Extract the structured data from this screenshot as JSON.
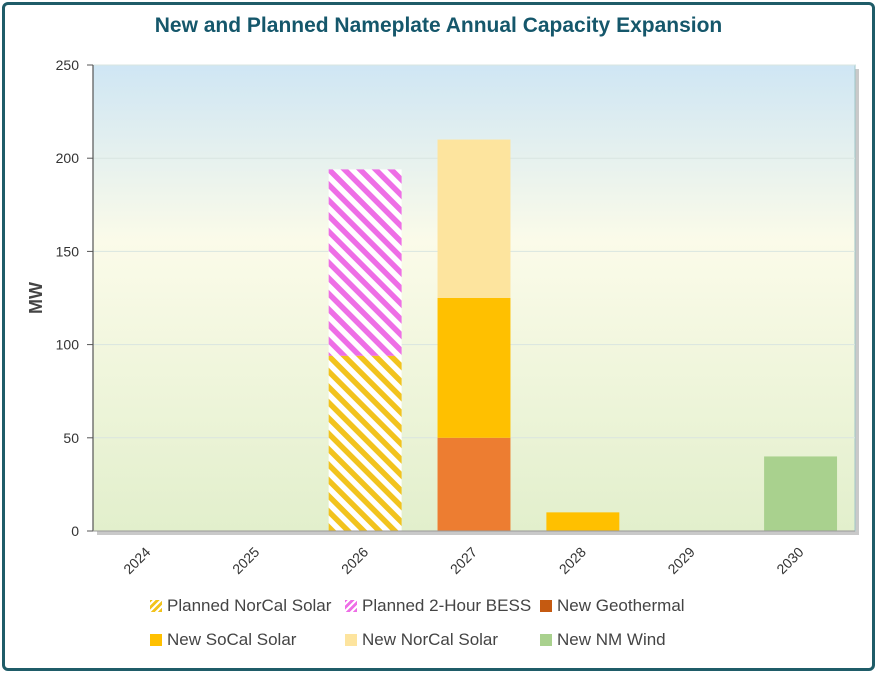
{
  "chart_data": {
    "type": "stacked-bar",
    "title": "New and Planned Nameplate Annual Capacity Expansion",
    "xlabel": "",
    "ylabel": "MW",
    "ylim": [
      0,
      250
    ],
    "yticks": [
      0,
      50,
      100,
      150,
      200,
      250
    ],
    "categories": [
      "2024",
      "2025",
      "2026",
      "2027",
      "2028",
      "2029",
      "2030"
    ],
    "series": [
      {
        "name": "Planned NorCal Solar",
        "color": "#f2c31d",
        "pattern": "hatch",
        "values": [
          0,
          0,
          94,
          0,
          0,
          0,
          0
        ]
      },
      {
        "name": "Planned 2-Hour BESS",
        "color": "#ee6ee6",
        "pattern": "hatch",
        "values": [
          0,
          0,
          100,
          0,
          0,
          0,
          0
        ]
      },
      {
        "name": "New Geothermal",
        "color": "#ed7d31",
        "pattern": "solid",
        "values": [
          0,
          0,
          0,
          50,
          0,
          0,
          0
        ]
      },
      {
        "name": "New SoCal Solar",
        "color": "#ffc000",
        "pattern": "solid",
        "values": [
          0,
          0,
          0,
          75,
          10,
          0,
          0
        ]
      },
      {
        "name": "New NorCal Solar",
        "color": "#fde49e",
        "pattern": "solid",
        "values": [
          0,
          0,
          0,
          85,
          0,
          0,
          0
        ]
      },
      {
        "name": "New NM Wind",
        "color": "#a9d18e",
        "pattern": "solid",
        "values": [
          0,
          0,
          0,
          0,
          0,
          0,
          40
        ]
      }
    ],
    "legend_position": "bottom"
  }
}
